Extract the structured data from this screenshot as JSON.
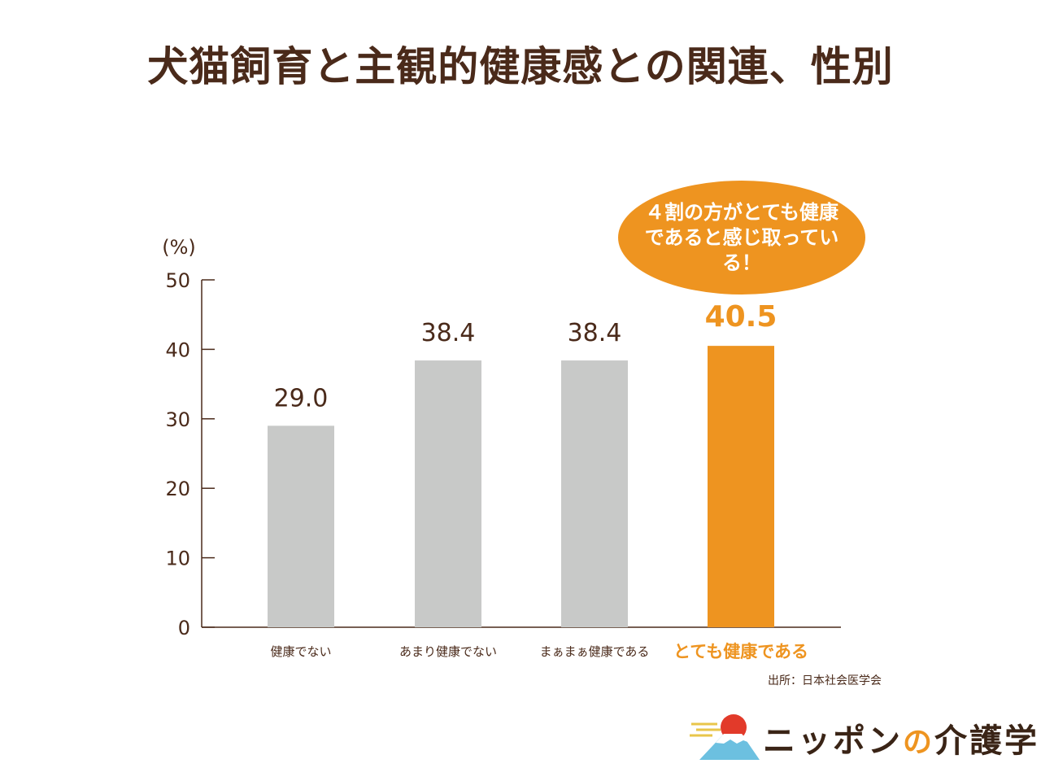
{
  "title": "犬猫飼育と主観的健康感との関連、性別",
  "unit": "(%)",
  "callout": "４割の方がとても健康であると感じ取っている！",
  "source": "出所：日本社会医学会",
  "logo": {
    "name": "ニッポン",
    "particle": "の",
    "suffix": "介護学"
  },
  "colors": {
    "bar": "#c8c9c8",
    "highlight": "#ee9420",
    "text": "#4a2a1a"
  },
  "chart_data": {
    "type": "bar",
    "title": "犬猫飼育と主観的健康感との関連、性別",
    "ylabel": "(%)",
    "ylim": [
      0,
      50
    ],
    "yticks": [
      0,
      10,
      20,
      30,
      40,
      50
    ],
    "categories": [
      "健康でない",
      "あまり健康でない",
      "まぁまぁ健康である",
      "とても健康である"
    ],
    "values": [
      29.0,
      38.4,
      38.4,
      40.5
    ],
    "value_labels": [
      "29.0",
      "38.4",
      "38.4",
      "40.5"
    ],
    "highlight_index": 3,
    "grid": false
  }
}
